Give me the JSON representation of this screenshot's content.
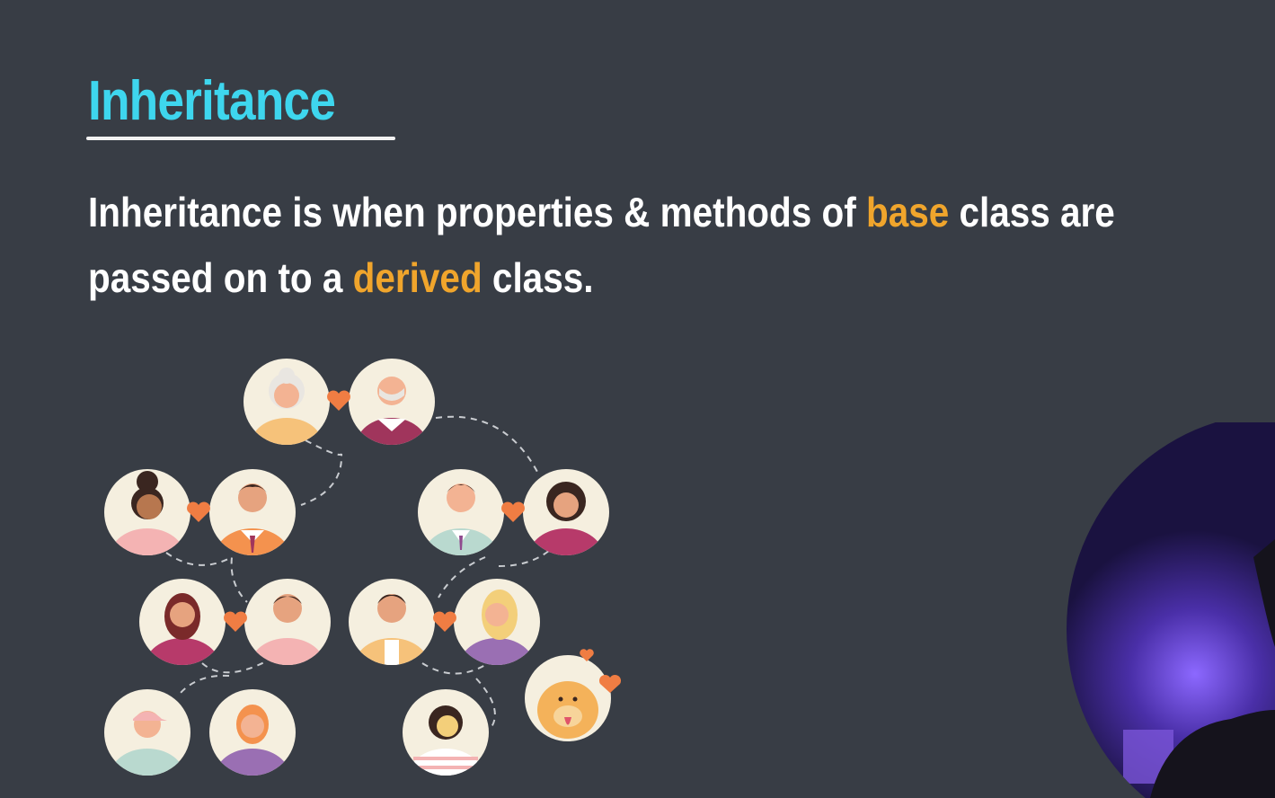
{
  "slide": {
    "title": "Inheritance",
    "sentence_line1_before": "Inheritance is when properties & methods of ",
    "sentence_line1_highlight": "base",
    "sentence_line1_after": " class are",
    "sentence_line2_before": "passed on to a ",
    "sentence_line2_highlight": "derived",
    "sentence_line2_after": " class."
  },
  "colors": {
    "background": "#383d45",
    "title": "#3ed6ee",
    "highlight": "#f0a52c",
    "text": "#ffffff",
    "heart": "#f07d43",
    "avatar_bg": "#f5efdf"
  },
  "illustration": {
    "type": "family-tree",
    "icons": [
      "grandmother-avatar",
      "grandfather-avatar",
      "woman-avatar",
      "man-avatar",
      "dog-avatar",
      "heart-icon"
    ]
  }
}
